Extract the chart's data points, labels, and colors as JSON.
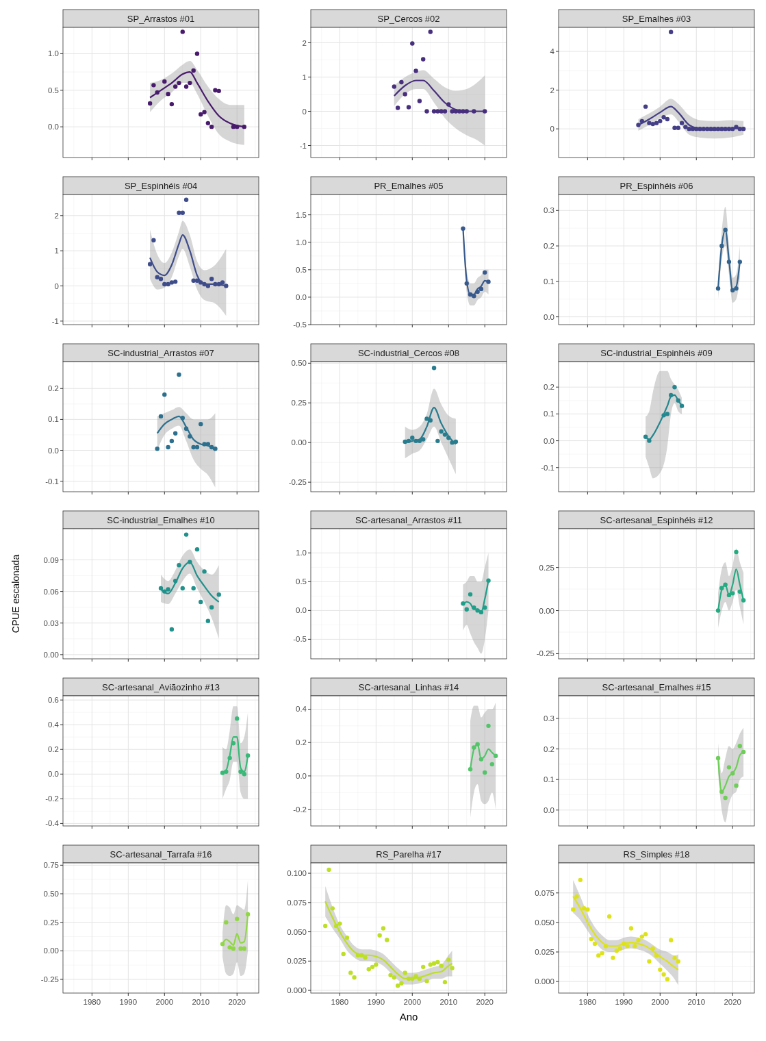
{
  "chart_data": [
    {
      "type": "scatter",
      "title": "SP_Arrastos #01",
      "xlim": [
        1972,
        2026
      ],
      "xticks": [
        1980,
        1990,
        2000,
        2010,
        2020
      ],
      "ylim": [
        -0.42,
        1.36
      ],
      "yticks": [
        {
          "value": 0,
          "label": "0.0"
        },
        0.5,
        {
          "value": 1,
          "label": "1.0"
        }
      ],
      "grid": true,
      "tick_labels": "y",
      "series": [
        {
          "type": "scatter",
          "marker": "circle",
          "color": "#481a6c",
          "x": [
            1996,
            1997,
            1998,
            2000,
            2001,
            2002,
            2003,
            2004,
            2005,
            2006,
            2007,
            2008,
            2009,
            2010,
            2011,
            2012,
            2013,
            2014,
            2015,
            2019,
            2020,
            2022
          ],
          "values": [
            0.32,
            0.57,
            0.47,
            0.62,
            0.45,
            0.31,
            0.55,
            0.6,
            1.3,
            0.55,
            0.6,
            0.77,
            1.0,
            0.17,
            0.2,
            0.05,
            0.0,
            0.5,
            0.49,
            0.0,
            0.0,
            0.0
          ]
        },
        {
          "type": "line",
          "color": "#481a6c",
          "x": [
            1996,
            1999,
            2002,
            2005,
            2007,
            2009,
            2012,
            2015,
            2018,
            2022
          ],
          "values": [
            0.4,
            0.5,
            0.6,
            0.72,
            0.75,
            0.6,
            0.35,
            0.15,
            0.05,
            0.0
          ],
          "lower": [
            0.2,
            0.36,
            0.47,
            0.6,
            0.6,
            0.45,
            0.15,
            -0.1,
            -0.2,
            -0.25
          ],
          "upper": [
            0.6,
            0.64,
            0.73,
            0.85,
            0.9,
            0.78,
            0.55,
            0.38,
            0.3,
            0.3
          ]
        }
      ]
    },
    {
      "type": "scatter",
      "title": "SP_Cercos #02",
      "xlim": [
        1972,
        2026
      ],
      "xticks": [
        1980,
        1990,
        2000,
        2010,
        2020
      ],
      "ylim": [
        -1.35,
        2.45
      ],
      "yticks": [
        -1,
        0,
        1,
        2
      ],
      "grid": true,
      "tick_labels": "y",
      "series": [
        {
          "type": "scatter",
          "marker": "circle",
          "color": "#472f7d",
          "x": [
            1995,
            1996,
            1997,
            1998,
            1999,
            2000,
            2001,
            2002,
            2003,
            2004,
            2005,
            2006,
            2007,
            2008,
            2009,
            2010,
            2011,
            2012,
            2013,
            2014,
            2015,
            2017,
            2020
          ],
          "values": [
            0.72,
            0.1,
            0.85,
            0.5,
            0.12,
            1.98,
            1.18,
            0.3,
            1.52,
            0.0,
            2.32,
            0.0,
            0.0,
            0.0,
            0.0,
            0.2,
            0.0,
            0.0,
            0.0,
            0.0,
            0.0,
            0.0,
            0.0
          ]
        },
        {
          "type": "line",
          "color": "#472f7d",
          "x": [
            1995,
            1998,
            2001,
            2003,
            2006,
            2009,
            2012,
            2015,
            2018,
            2020
          ],
          "values": [
            0.45,
            0.75,
            0.9,
            0.9,
            0.6,
            0.25,
            0.05,
            0.0,
            0.0,
            0.0
          ],
          "lower": [
            0.15,
            0.5,
            0.65,
            0.65,
            0.25,
            -0.2,
            -0.5,
            -0.7,
            -0.85,
            -1.0
          ],
          "upper": [
            0.75,
            1.0,
            1.15,
            1.2,
            0.95,
            0.7,
            0.6,
            0.65,
            0.85,
            1.05
          ]
        }
      ]
    },
    {
      "type": "scatter",
      "title": "SP_Emalhes #03",
      "xlim": [
        1972,
        2026
      ],
      "xticks": [
        1980,
        1990,
        2000,
        2010,
        2020
      ],
      "ylim": [
        -1.48,
        5.24
      ],
      "yticks": [
        0,
        2,
        4
      ],
      "grid": true,
      "tick_labels": "y",
      "series": [
        {
          "type": "scatter",
          "marker": "circle",
          "color": "#433e85",
          "x": [
            1994,
            1995,
            1996,
            1997,
            1998,
            1999,
            2000,
            2001,
            2002,
            2003,
            2004,
            2005,
            2006,
            2007,
            2008,
            2009,
            2010,
            2011,
            2012,
            2013,
            2014,
            2015,
            2016,
            2017,
            2018,
            2019,
            2020,
            2021,
            2022,
            2023
          ],
          "values": [
            0.2,
            0.4,
            1.15,
            0.3,
            0.25,
            0.3,
            0.4,
            0.6,
            0.5,
            5.0,
            0.05,
            0.05,
            0.3,
            0.1,
            0.0,
            0.0,
            0.0,
            0.0,
            0.0,
            0.0,
            0.0,
            0.0,
            0.0,
            0.0,
            0.0,
            0.0,
            0.0,
            0.1,
            0.0,
            0.0
          ]
        },
        {
          "type": "line",
          "color": "#433e85",
          "x": [
            1994,
            1997,
            2000,
            2003,
            2005,
            2008,
            2011,
            2015,
            2019,
            2023
          ],
          "values": [
            0.2,
            0.5,
            0.85,
            1.15,
            0.85,
            0.2,
            0.0,
            -0.05,
            0.0,
            0.05
          ],
          "lower": [
            -0.1,
            0.2,
            0.55,
            0.75,
            0.4,
            -0.3,
            -0.45,
            -0.5,
            -0.45,
            -0.3
          ],
          "upper": [
            0.5,
            0.8,
            1.15,
            1.55,
            1.3,
            0.7,
            0.45,
            0.4,
            0.45,
            0.4
          ]
        }
      ]
    },
    {
      "type": "scatter",
      "title": "SP_Espinhéis #04",
      "xlim": [
        1972,
        2026
      ],
      "xticks": [
        1980,
        1990,
        2000,
        2010,
        2020
      ],
      "ylim": [
        -1.1,
        2.6
      ],
      "yticks": [
        -1,
        0,
        1,
        2
      ],
      "grid": true,
      "tick_labels": "y",
      "series": [
        {
          "type": "scatter",
          "marker": "circle",
          "color": "#3e4c8a",
          "x": [
            1996,
            1997,
            1998,
            1999,
            2000,
            2001,
            2002,
            2003,
            2004,
            2005,
            2006,
            2008,
            2009,
            2010,
            2011,
            2012,
            2013,
            2014,
            2015,
            2016,
            2017
          ],
          "values": [
            0.62,
            1.3,
            0.25,
            0.2,
            0.05,
            0.05,
            0.1,
            0.12,
            2.08,
            2.08,
            2.45,
            0.15,
            0.15,
            0.1,
            0.05,
            0.0,
            0.2,
            0.05,
            0.05,
            0.1,
            0.0
          ]
        },
        {
          "type": "line",
          "color": "#3e4c8a",
          "x": [
            1996,
            1998,
            2000,
            2002,
            2004,
            2005,
            2007,
            2009,
            2011,
            2014,
            2017
          ],
          "values": [
            0.8,
            0.4,
            0.3,
            0.6,
            1.2,
            1.45,
            1.0,
            0.3,
            0.05,
            0.05,
            0.0
          ],
          "lower": [
            0.2,
            -0.1,
            -0.05,
            0.25,
            0.85,
            1.05,
            0.55,
            -0.1,
            -0.4,
            -0.5,
            -0.85
          ],
          "upper": [
            1.6,
            0.9,
            0.65,
            0.95,
            1.55,
            1.85,
            1.45,
            0.7,
            0.45,
            0.6,
            1.05
          ]
        }
      ]
    },
    {
      "type": "scatter",
      "title": "PR_Emalhes #05",
      "xlim": [
        1972,
        2026
      ],
      "xticks": [
        1980,
        1990,
        2000,
        2010,
        2020
      ],
      "ylim": [
        -0.5,
        1.87
      ],
      "yticks": [
        -0.5,
        {
          "value": 0,
          "label": "0.0"
        },
        0.5,
        {
          "value": 1,
          "label": "1.0"
        },
        1.5
      ],
      "grid": true,
      "tick_labels": "y",
      "series": [
        {
          "type": "scatter",
          "marker": "circle",
          "color": "#38598c",
          "x": [
            2014,
            2015,
            2016,
            2017,
            2018,
            2019,
            2020,
            2021
          ],
          "values": [
            1.25,
            0.25,
            0.05,
            0.02,
            0.1,
            0.15,
            0.45,
            0.28
          ]
        },
        {
          "type": "line",
          "color": "#38598c",
          "x": [
            2014,
            2015,
            2016,
            2017,
            2018,
            2019,
            2020,
            2021
          ],
          "values": [
            1.25,
            0.3,
            0.05,
            0.05,
            0.15,
            0.2,
            0.3,
            0.28
          ],
          "lower": [
            1.05,
            0.1,
            -0.15,
            -0.15,
            -0.05,
            0.0,
            0.1,
            0.05
          ],
          "upper": [
            1.45,
            0.5,
            0.25,
            0.25,
            0.35,
            0.4,
            0.5,
            0.5
          ]
        }
      ]
    },
    {
      "type": "scatter",
      "title": "PR_Espinhéis #06",
      "xlim": [
        1972,
        2026
      ],
      "xticks": [
        1980,
        1990,
        2000,
        2010,
        2020
      ],
      "ylim": [
        -0.022,
        0.345
      ],
      "yticks": [
        {
          "value": 0,
          "label": "0.0"
        },
        0.1,
        0.2,
        0.3
      ],
      "grid": true,
      "tick_labels": "y",
      "series": [
        {
          "type": "scatter",
          "marker": "circle",
          "color": "#33638d",
          "x": [
            2016,
            2017,
            2018,
            2019,
            2020,
            2021,
            2022
          ],
          "values": [
            0.08,
            0.2,
            0.245,
            0.155,
            0.075,
            0.08,
            0.155
          ]
        },
        {
          "type": "line",
          "color": "#33638d",
          "x": [
            2016,
            2017,
            2018,
            2019,
            2020,
            2021,
            2022
          ],
          "values": [
            0.08,
            0.2,
            0.245,
            0.16,
            0.075,
            0.085,
            0.155
          ],
          "lower": [
            0.05,
            0.16,
            0.2,
            0.12,
            0.04,
            0.05,
            0.11
          ],
          "upper": [
            0.11,
            0.24,
            0.31,
            0.2,
            0.11,
            0.12,
            0.2
          ]
        }
      ]
    },
    {
      "type": "scatter",
      "title": "SC-industrial_Arrastos #07",
      "xlim": [
        1972,
        2026
      ],
      "xticks": [
        1980,
        1990,
        2000,
        2010,
        2020
      ],
      "ylim": [
        -0.134,
        0.287
      ],
      "yticks": [
        -0.1,
        {
          "value": 0,
          "label": "0.0"
        },
        0.1,
        0.2
      ],
      "grid": true,
      "tick_labels": "y",
      "series": [
        {
          "type": "scatter",
          "marker": "circle",
          "color": "#2d708e",
          "x": [
            1998,
            1999,
            2000,
            2001,
            2002,
            2003,
            2004,
            2005,
            2006,
            2007,
            2008,
            2009,
            2010,
            2011,
            2012,
            2013,
            2014
          ],
          "values": [
            0.005,
            0.11,
            0.18,
            0.01,
            0.03,
            0.055,
            0.245,
            0.105,
            0.07,
            0.045,
            0.01,
            0.01,
            0.085,
            0.02,
            0.02,
            0.01,
            0.005
          ]
        },
        {
          "type": "line",
          "color": "#2d708e",
          "x": [
            1998,
            2000,
            2002,
            2004,
            2006,
            2008,
            2010,
            2012,
            2014
          ],
          "values": [
            0.055,
            0.085,
            0.1,
            0.11,
            0.075,
            0.035,
            0.02,
            0.015,
            0.0
          ],
          "lower": [
            0.0,
            0.05,
            0.07,
            0.08,
            0.03,
            -0.03,
            -0.06,
            -0.08,
            -0.12
          ],
          "upper": [
            0.11,
            0.12,
            0.13,
            0.14,
            0.12,
            0.1,
            0.1,
            0.1,
            0.12
          ]
        }
      ]
    },
    {
      "type": "scatter",
      "title": "SC-industrial_Cercos #08",
      "xlim": [
        1972,
        2026
      ],
      "xticks": [
        1980,
        1990,
        2000,
        2010,
        2020
      ],
      "ylim": [
        -0.31,
        0.51
      ],
      "yticks": [
        -0.25,
        {
          "value": 0,
          "label": "0.00"
        },
        0.25,
        {
          "value": 0.5,
          "label": "0.50"
        }
      ],
      "grid": true,
      "tick_labels": "y",
      "series": [
        {
          "type": "scatter",
          "marker": "circle",
          "color": "#287c8e",
          "x": [
            1998,
            1999,
            2000,
            2001,
            2002,
            2003,
            2004,
            2005,
            2006,
            2007,
            2008,
            2009,
            2010,
            2011,
            2012
          ],
          "values": [
            0.005,
            0.01,
            0.03,
            0.01,
            0.01,
            0.02,
            0.15,
            0.14,
            0.47,
            0.01,
            0.07,
            0.05,
            0.03,
            0.0,
            0.005
          ]
        },
        {
          "type": "line",
          "color": "#287c8e",
          "x": [
            1998,
            2000,
            2002,
            2004,
            2006,
            2008,
            2010,
            2012
          ],
          "values": [
            0.0,
            0.01,
            0.02,
            0.1,
            0.22,
            0.12,
            0.04,
            -0.01
          ],
          "lower": [
            -0.1,
            -0.07,
            -0.05,
            0.02,
            0.1,
            0.0,
            -0.1,
            -0.2
          ],
          "upper": [
            0.1,
            0.08,
            0.1,
            0.18,
            0.34,
            0.24,
            0.17,
            0.15
          ]
        }
      ]
    },
    {
      "type": "scatter",
      "title": "SC-industrial_Espinhéis #09",
      "xlim": [
        1972,
        2026
      ],
      "xticks": [
        1980,
        1990,
        2000,
        2010,
        2020
      ],
      "ylim": [
        -0.19,
        0.295
      ],
      "yticks": [
        -0.1,
        {
          "value": 0,
          "label": "0.0"
        },
        0.1,
        0.2
      ],
      "grid": true,
      "tick_labels": "y",
      "series": [
        {
          "type": "scatter",
          "marker": "circle",
          "color": "#24868e",
          "x": [
            1996,
            1997,
            2001,
            2002,
            2003,
            2004,
            2005,
            2006
          ],
          "values": [
            0.015,
            0.0,
            0.095,
            0.1,
            0.17,
            0.2,
            0.15,
            0.13
          ]
        },
        {
          "type": "line",
          "color": "#24868e",
          "x": [
            1996,
            1997,
            1998,
            2000,
            2002,
            2003,
            2004,
            2005,
            2006
          ],
          "values": [
            0.015,
            0.005,
            0.02,
            0.07,
            0.13,
            0.165,
            0.17,
            0.15,
            0.13
          ],
          "lower": [
            -0.06,
            -0.1,
            -0.14,
            -0.12,
            -0.02,
            0.1,
            0.14,
            0.11,
            0.1
          ],
          "upper": [
            0.09,
            0.11,
            0.18,
            0.26,
            0.26,
            0.23,
            0.21,
            0.19,
            0.16
          ]
        }
      ]
    },
    {
      "type": "scatter",
      "title": "SC-industrial_Emalhes #10",
      "ylabel": "CPUE escalonada",
      "xlim": [
        1972,
        2026
      ],
      "xticks": [
        1980,
        1990,
        2000,
        2010,
        2020
      ],
      "ylim": [
        -0.004,
        0.1196
      ],
      "yticks": [
        {
          "value": 0,
          "label": "0.00"
        },
        0.03,
        0.06,
        0.09
      ],
      "grid": true,
      "tick_labels": "y",
      "series": [
        {
          "type": "scatter",
          "marker": "circle",
          "color": "#21918c",
          "x": [
            1999,
            2000,
            2001,
            2002,
            2003,
            2004,
            2005,
            2006,
            2007,
            2008,
            2009,
            2010,
            2011,
            2012,
            2013,
            2015
          ],
          "values": [
            0.063,
            0.06,
            0.062,
            0.024,
            0.07,
            0.085,
            0.063,
            0.114,
            0.088,
            0.063,
            0.1,
            0.05,
            0.079,
            0.032,
            0.045,
            0.057
          ]
        },
        {
          "type": "line",
          "color": "#21918c",
          "x": [
            1999,
            2001,
            2003,
            2005,
            2007,
            2009,
            2011,
            2013,
            2015
          ],
          "values": [
            0.062,
            0.058,
            0.068,
            0.082,
            0.088,
            0.075,
            0.065,
            0.056,
            0.05
          ],
          "lower": [
            0.05,
            0.048,
            0.058,
            0.07,
            0.077,
            0.063,
            0.05,
            0.035,
            0.015
          ],
          "upper": [
            0.076,
            0.07,
            0.08,
            0.094,
            0.1,
            0.088,
            0.08,
            0.076,
            0.085
          ]
        }
      ]
    },
    {
      "type": "scatter",
      "title": "SC-artesanal_Arrastos #11",
      "xlim": [
        1972,
        2026
      ],
      "xticks": [
        1980,
        1990,
        2000,
        2010,
        2020
      ],
      "ylim": [
        -0.84,
        1.42
      ],
      "yticks": [
        -0.5,
        {
          "value": 0,
          "label": "0.0"
        },
        0.5,
        {
          "value": 1,
          "label": "1.0"
        }
      ],
      "grid": true,
      "tick_labels": "y",
      "series": [
        {
          "type": "scatter",
          "marker": "circle",
          "color": "#1f9e89",
          "x": [
            2014,
            2015,
            2016,
            2017,
            2018,
            2019,
            2020,
            2021
          ],
          "values": [
            0.12,
            0.02,
            0.28,
            0.05,
            0.0,
            -0.03,
            0.05,
            0.52
          ]
        },
        {
          "type": "line",
          "color": "#1f9e89",
          "x": [
            2014,
            2015,
            2016,
            2017,
            2018,
            2019,
            2020,
            2021
          ],
          "values": [
            0.1,
            0.15,
            0.12,
            0.02,
            0.02,
            -0.03,
            0.2,
            0.52
          ],
          "lower": [
            -0.35,
            -0.25,
            -0.4,
            -0.55,
            -0.65,
            -0.75,
            -0.5,
            0.0
          ],
          "upper": [
            0.45,
            0.5,
            0.6,
            0.6,
            0.5,
            0.5,
            0.75,
            1.0
          ]
        }
      ]
    },
    {
      "type": "scatter",
      "title": "SC-artesanal_Espinhéis #12",
      "xlim": [
        1972,
        2026
      ],
      "xticks": [
        1980,
        1990,
        2000,
        2010,
        2020
      ],
      "ylim": [
        -0.28,
        0.475
      ],
      "yticks": [
        -0.25,
        {
          "value": 0,
          "label": "0.00"
        },
        0.25
      ],
      "grid": true,
      "tick_labels": "y",
      "series": [
        {
          "type": "scatter",
          "marker": "circle",
          "color": "#25ab82",
          "x": [
            2016,
            2017,
            2018,
            2019,
            2020,
            2021,
            2022,
            2023
          ],
          "values": [
            0.0,
            0.13,
            0.15,
            0.09,
            0.1,
            0.34,
            0.11,
            0.06
          ]
        },
        {
          "type": "line",
          "color": "#25ab82",
          "x": [
            2016,
            2017,
            2018,
            2019,
            2020,
            2021,
            2022,
            2023
          ],
          "values": [
            0.0,
            0.12,
            0.15,
            0.09,
            0.15,
            0.24,
            0.15,
            0.06
          ],
          "lower": [
            -0.1,
            0.0,
            0.05,
            0.0,
            0.05,
            0.12,
            0.02,
            -0.08
          ],
          "upper": [
            0.1,
            0.24,
            0.28,
            0.2,
            0.26,
            0.36,
            0.28,
            0.22
          ]
        }
      ]
    },
    {
      "type": "scatter",
      "title": "SC-artesanal_Aviãozinho #13",
      "xlim": [
        1972,
        2026
      ],
      "xticks": [
        1980,
        1990,
        2000,
        2010,
        2020
      ],
      "ylim": [
        -0.42,
        0.634
      ],
      "yticks": [
        -0.4,
        -0.2,
        {
          "value": 0,
          "label": "0.0"
        },
        0.2,
        0.4,
        0.6
      ],
      "grid": true,
      "tick_labels": "y",
      "series": [
        {
          "type": "scatter",
          "marker": "circle",
          "color": "#38b977",
          "x": [
            2016,
            2017,
            2018,
            2019,
            2020,
            2021,
            2022,
            2023
          ],
          "values": [
            0.01,
            0.02,
            0.13,
            0.25,
            0.45,
            0.02,
            0.0,
            0.15
          ]
        },
        {
          "type": "line",
          "color": "#38b977",
          "x": [
            2016,
            2017,
            2018,
            2019,
            2020,
            2021,
            2022,
            2023
          ],
          "values": [
            0.01,
            0.03,
            0.15,
            0.3,
            0.3,
            0.05,
            0.02,
            0.15
          ],
          "lower": [
            -0.2,
            -0.12,
            -0.05,
            0.1,
            0.1,
            -0.15,
            -0.2,
            -0.2
          ],
          "upper": [
            0.22,
            0.2,
            0.35,
            0.55,
            0.55,
            0.25,
            0.3,
            0.5
          ]
        }
      ]
    },
    {
      "type": "scatter",
      "title": "SC-artesanal_Linhas #14",
      "xlim": [
        1972,
        2026
      ],
      "xticks": [
        1980,
        1990,
        2000,
        2010,
        2020
      ],
      "ylim": [
        -0.3,
        0.48
      ],
      "yticks": [
        -0.2,
        {
          "value": 0,
          "label": "0.0"
        },
        0.2,
        0.4
      ],
      "grid": true,
      "tick_labels": "y",
      "series": [
        {
          "type": "scatter",
          "marker": "circle",
          "color": "#52c569",
          "x": [
            2016,
            2017,
            2018,
            2019,
            2020,
            2021,
            2022,
            2023
          ],
          "values": [
            0.04,
            0.17,
            0.19,
            0.1,
            0.02,
            0.3,
            0.07,
            0.12
          ]
        },
        {
          "type": "line",
          "color": "#52c569",
          "x": [
            2016,
            2017,
            2018,
            2019,
            2020,
            2021,
            2022,
            2023
          ],
          "values": [
            0.04,
            0.16,
            0.19,
            0.1,
            0.12,
            0.16,
            0.14,
            0.12
          ],
          "lower": [
            -0.25,
            -0.1,
            -0.05,
            -0.15,
            -0.17,
            -0.15,
            -0.1,
            -0.2
          ],
          "upper": [
            0.33,
            0.42,
            0.42,
            0.35,
            0.38,
            0.4,
            0.4,
            0.44
          ]
        }
      ]
    },
    {
      "type": "scatter",
      "title": "SC-artesanal_Emalhes #15",
      "xlim": [
        1972,
        2026
      ],
      "xticks": [
        1980,
        1990,
        2000,
        2010,
        2020
      ],
      "ylim": [
        -0.052,
        0.374
      ],
      "yticks": [
        {
          "value": 0,
          "label": "0.0"
        },
        0.1,
        0.2,
        0.3
      ],
      "grid": true,
      "tick_labels": "y",
      "series": [
        {
          "type": "scatter",
          "marker": "circle",
          "color": "#6ece58",
          "x": [
            2016,
            2017,
            2018,
            2019,
            2020,
            2021,
            2022,
            2023
          ],
          "values": [
            0.17,
            0.06,
            0.04,
            0.14,
            0.12,
            0.08,
            0.21,
            0.19
          ]
        },
        {
          "type": "line",
          "color": "#6ece58",
          "x": [
            2016,
            2017,
            2018,
            2019,
            2020,
            2021,
            2022,
            2023
          ],
          "values": [
            0.17,
            0.06,
            0.08,
            0.11,
            0.12,
            0.14,
            0.18,
            0.19
          ],
          "lower": [
            0.12,
            0.0,
            -0.04,
            0.02,
            0.05,
            0.06,
            0.1,
            0.11
          ],
          "upper": [
            0.22,
            0.12,
            0.17,
            0.21,
            0.2,
            0.22,
            0.25,
            0.27
          ]
        }
      ]
    },
    {
      "type": "scatter",
      "title": "SC-artesanal_Tarrafa #16",
      "xlim": [
        1972,
        2026
      ],
      "xticks": [
        1980,
        1990,
        2000,
        2010,
        2020
      ],
      "ylim": [
        -0.37,
        0.77
      ],
      "yticks": [
        -0.25,
        {
          "value": 0,
          "label": "0.00"
        },
        0.25,
        {
          "value": 0.5,
          "label": "0.50"
        },
        0.75
      ],
      "grid": true,
      "series": [
        {
          "type": "scatter",
          "marker": "circle",
          "color": "#8fd744",
          "x": [
            2016,
            2017,
            2018,
            2019,
            2020,
            2021,
            2022,
            2023
          ],
          "values": [
            0.06,
            0.25,
            0.03,
            0.02,
            0.28,
            0.02,
            0.02,
            0.32
          ]
        },
        {
          "type": "line",
          "color": "#8fd744",
          "x": [
            2016,
            2017,
            2018,
            2019,
            2020,
            2021,
            2022,
            2023
          ],
          "values": [
            0.06,
            0.1,
            0.08,
            0.05,
            0.15,
            0.07,
            0.08,
            0.32
          ],
          "lower": [
            -0.05,
            -0.2,
            -0.22,
            -0.2,
            -0.1,
            -0.22,
            -0.2,
            0.0
          ],
          "upper": [
            0.15,
            0.4,
            0.38,
            0.32,
            0.4,
            0.38,
            0.36,
            0.62
          ]
        }
      ]
    },
    {
      "type": "scatter",
      "title": "RS_Parelha #17",
      "xlabel": "Ano",
      "xlim": [
        1972,
        2026
      ],
      "xticks": [
        1980,
        1990,
        2000,
        2010,
        2020
      ],
      "ylim": [
        -0.0023,
        0.1088
      ],
      "yticks": [
        {
          "value": 0,
          "label": "0.000"
        },
        0.025,
        {
          "value": 0.05,
          "label": "0.050"
        },
        0.075,
        {
          "value": 0.1,
          "label": "0.100"
        }
      ],
      "grid": true,
      "series": [
        {
          "type": "scatter",
          "marker": "circle",
          "color": "#bddf26",
          "x": [
            1976,
            1977,
            1978,
            1979,
            1980,
            1981,
            1982,
            1983,
            1984,
            1985,
            1986,
            1987,
            1988,
            1989,
            1990,
            1991,
            1992,
            1993,
            1994,
            1995,
            1996,
            1997,
            1998,
            1999,
            2000,
            2001,
            2002,
            2003,
            2004,
            2005,
            2006,
            2007,
            2008,
            2009,
            2010,
            2011
          ],
          "values": [
            0.055,
            0.103,
            0.07,
            0.055,
            0.057,
            0.031,
            0.045,
            0.015,
            0.011,
            0.03,
            0.03,
            0.028,
            0.018,
            0.02,
            0.022,
            0.047,
            0.053,
            0.043,
            0.013,
            0.011,
            0.004,
            0.006,
            0.015,
            0.01,
            0.01,
            0.012,
            0.01,
            0.02,
            0.008,
            0.022,
            0.023,
            0.024,
            0.021,
            0.007,
            0.026,
            0.019
          ]
        },
        {
          "type": "line",
          "color": "#bddf26",
          "x": [
            1976,
            1978,
            1980,
            1982,
            1984,
            1986,
            1988,
            1990,
            1992,
            1994,
            1996,
            1998,
            2000,
            2002,
            2004,
            2006,
            2008,
            2010,
            2011
          ],
          "values": [
            0.076,
            0.062,
            0.05,
            0.04,
            0.033,
            0.03,
            0.03,
            0.029,
            0.026,
            0.02,
            0.014,
            0.01,
            0.01,
            0.011,
            0.013,
            0.015,
            0.016,
            0.021,
            0.023
          ],
          "lower": [
            0.063,
            0.053,
            0.044,
            0.034,
            0.028,
            0.025,
            0.025,
            0.024,
            0.021,
            0.015,
            0.009,
            0.005,
            0.005,
            0.006,
            0.008,
            0.01,
            0.01,
            0.012,
            0.012
          ],
          "upper": [
            0.089,
            0.071,
            0.056,
            0.046,
            0.038,
            0.035,
            0.035,
            0.034,
            0.031,
            0.025,
            0.019,
            0.015,
            0.015,
            0.016,
            0.018,
            0.02,
            0.022,
            0.03,
            0.034
          ]
        }
      ]
    },
    {
      "type": "scatter",
      "title": "RS_Simples #18",
      "xlim": [
        1972,
        2026
      ],
      "xticks": [
        1980,
        1990,
        2000,
        2010,
        2020
      ],
      "ylim": [
        -0.0098,
        0.1004
      ],
      "yticks": [
        {
          "value": 0,
          "label": "0.000"
        },
        0.025,
        {
          "value": 0.05,
          "label": "0.050"
        },
        0.075
      ],
      "grid": true,
      "series": [
        {
          "type": "scatter",
          "marker": "circle",
          "color": "#dde318",
          "x": [
            1976,
            1977,
            1978,
            1979,
            1980,
            1981,
            1982,
            1983,
            1984,
            1985,
            1986,
            1987,
            1988,
            1989,
            1990,
            1991,
            1992,
            1993,
            1994,
            1995,
            1996,
            1997,
            1998,
            1999,
            2000,
            2001,
            2002,
            2003,
            2004,
            2005
          ],
          "values": [
            0.061,
            0.072,
            0.086,
            0.062,
            0.061,
            0.036,
            0.032,
            0.022,
            0.024,
            0.03,
            0.055,
            0.02,
            0.026,
            0.028,
            0.032,
            0.03,
            0.045,
            0.03,
            0.035,
            0.038,
            0.04,
            0.017,
            0.028,
            0.022,
            0.01,
            0.006,
            0.002,
            0.035,
            0.02,
            0.017
          ]
        },
        {
          "type": "line",
          "color": "#dde318",
          "x": [
            1976,
            1978,
            1980,
            1982,
            1984,
            1986,
            1988,
            1990,
            1992,
            1994,
            1996,
            1998,
            2000,
            2002,
            2004,
            2005
          ],
          "values": [
            0.072,
            0.062,
            0.05,
            0.04,
            0.033,
            0.03,
            0.03,
            0.032,
            0.033,
            0.032,
            0.03,
            0.026,
            0.021,
            0.017,
            0.012,
            0.01
          ],
          "lower": [
            0.058,
            0.052,
            0.043,
            0.034,
            0.027,
            0.025,
            0.025,
            0.027,
            0.028,
            0.027,
            0.025,
            0.021,
            0.015,
            0.009,
            0.002,
            -0.003
          ],
          "upper": [
            0.086,
            0.072,
            0.057,
            0.046,
            0.039,
            0.035,
            0.035,
            0.037,
            0.038,
            0.037,
            0.035,
            0.031,
            0.027,
            0.025,
            0.022,
            0.023
          ]
        }
      ]
    }
  ]
}
